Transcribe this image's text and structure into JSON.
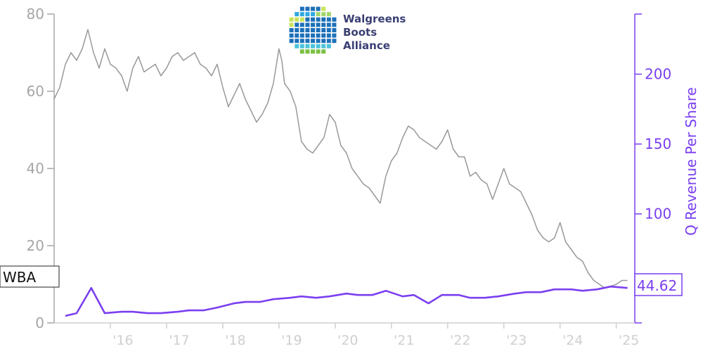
{
  "colors": {
    "price": "#999999",
    "revenue": "#7a3ff0",
    "axis_left": "#a6a6a6",
    "axis_x": "#cfcfcf",
    "logo_blue": "#3a3f73",
    "logo_tiles": [
      "#7ac143",
      "#2fa8df",
      "#c9e35b",
      "#4cc3d9",
      "#1d6fb8",
      "#9fd46b"
    ]
  },
  "logo": {
    "line1": "Walgreens",
    "line2": "Boots",
    "line3": "Alliance"
  },
  "ticker_label": "WBA",
  "last_value_label": "44.62",
  "chart_data": {
    "type": "line",
    "x_tick_labels": [
      "'16",
      "'17",
      "'18",
      "'19",
      "'20",
      "'21",
      "'22",
      "'23",
      "'24",
      "'25"
    ],
    "x_tick_years": [
      2016,
      2017,
      2018,
      2019,
      2020,
      2021,
      2022,
      2023,
      2024,
      2025
    ],
    "x_range": [
      2015.0,
      2025.33
    ],
    "left_axis": {
      "ticks": [
        0,
        20,
        40,
        60,
        80
      ],
      "range": [
        0,
        80
      ]
    },
    "right_axis": {
      "label": "Q Revenue Per Share",
      "ticks": [
        100,
        150,
        200
      ],
      "range": [
        22,
        243
      ]
    },
    "grid": false,
    "series": [
      {
        "name": "WBA",
        "axis": "left",
        "points": [
          [
            2015.0,
            58
          ],
          [
            2015.1,
            61
          ],
          [
            2015.2,
            67
          ],
          [
            2015.3,
            70
          ],
          [
            2015.4,
            68
          ],
          [
            2015.5,
            71
          ],
          [
            2015.6,
            76
          ],
          [
            2015.7,
            70
          ],
          [
            2015.8,
            66
          ],
          [
            2015.9,
            71
          ],
          [
            2016.0,
            67
          ],
          [
            2016.1,
            66
          ],
          [
            2016.2,
            64
          ],
          [
            2016.3,
            60
          ],
          [
            2016.4,
            66
          ],
          [
            2016.5,
            69
          ],
          [
            2016.6,
            65
          ],
          [
            2016.7,
            66
          ],
          [
            2016.8,
            67
          ],
          [
            2016.9,
            64
          ],
          [
            2017.0,
            66
          ],
          [
            2017.1,
            69
          ],
          [
            2017.2,
            70
          ],
          [
            2017.3,
            68
          ],
          [
            2017.4,
            69
          ],
          [
            2017.5,
            70
          ],
          [
            2017.6,
            67
          ],
          [
            2017.7,
            66
          ],
          [
            2017.8,
            64
          ],
          [
            2017.9,
            67
          ],
          [
            2018.0,
            61
          ],
          [
            2018.1,
            56
          ],
          [
            2018.2,
            59
          ],
          [
            2018.3,
            62
          ],
          [
            2018.4,
            58
          ],
          [
            2018.5,
            55
          ],
          [
            2018.6,
            52
          ],
          [
            2018.7,
            54
          ],
          [
            2018.8,
            57
          ],
          [
            2018.9,
            62
          ],
          [
            2019.0,
            71
          ],
          [
            2019.05,
            68
          ],
          [
            2019.1,
            62
          ],
          [
            2019.2,
            60
          ],
          [
            2019.3,
            56
          ],
          [
            2019.4,
            47
          ],
          [
            2019.5,
            45
          ],
          [
            2019.6,
            44
          ],
          [
            2019.7,
            46
          ],
          [
            2019.8,
            48
          ],
          [
            2019.9,
            54
          ],
          [
            2020.0,
            52
          ],
          [
            2020.1,
            46
          ],
          [
            2020.2,
            44
          ],
          [
            2020.3,
            40
          ],
          [
            2020.4,
            38
          ],
          [
            2020.5,
            36
          ],
          [
            2020.6,
            35
          ],
          [
            2020.7,
            33
          ],
          [
            2020.8,
            31
          ],
          [
            2020.9,
            38
          ],
          [
            2021.0,
            42
          ],
          [
            2021.1,
            44
          ],
          [
            2021.2,
            48
          ],
          [
            2021.3,
            51
          ],
          [
            2021.4,
            50
          ],
          [
            2021.5,
            48
          ],
          [
            2021.6,
            47
          ],
          [
            2021.7,
            46
          ],
          [
            2021.8,
            45
          ],
          [
            2021.9,
            47
          ],
          [
            2022.0,
            50
          ],
          [
            2022.1,
            45
          ],
          [
            2022.2,
            43
          ],
          [
            2022.3,
            43
          ],
          [
            2022.4,
            38
          ],
          [
            2022.5,
            39
          ],
          [
            2022.6,
            37
          ],
          [
            2022.7,
            36
          ],
          [
            2022.8,
            32
          ],
          [
            2022.9,
            36
          ],
          [
            2023.0,
            40
          ],
          [
            2023.1,
            36
          ],
          [
            2023.2,
            35
          ],
          [
            2023.3,
            34
          ],
          [
            2023.4,
            31
          ],
          [
            2023.5,
            28
          ],
          [
            2023.6,
            24
          ],
          [
            2023.7,
            22
          ],
          [
            2023.8,
            21
          ],
          [
            2023.9,
            22
          ],
          [
            2024.0,
            26
          ],
          [
            2024.1,
            21
          ],
          [
            2024.2,
            19
          ],
          [
            2024.3,
            17
          ],
          [
            2024.4,
            16
          ],
          [
            2024.5,
            13
          ],
          [
            2024.6,
            11
          ],
          [
            2024.7,
            10
          ],
          [
            2024.8,
            9
          ],
          [
            2024.9,
            9.5
          ],
          [
            2025.0,
            10
          ],
          [
            2025.1,
            11
          ],
          [
            2025.2,
            11
          ]
        ]
      },
      {
        "name": "Q Revenue Per Share",
        "axis": "right",
        "points": [
          [
            2015.2,
            27
          ],
          [
            2015.4,
            29
          ],
          [
            2015.66,
            47
          ],
          [
            2015.9,
            29
          ],
          [
            2016.2,
            30
          ],
          [
            2016.4,
            30
          ],
          [
            2016.66,
            29
          ],
          [
            2016.9,
            29
          ],
          [
            2017.2,
            30
          ],
          [
            2017.4,
            31
          ],
          [
            2017.66,
            31
          ],
          [
            2017.9,
            33
          ],
          [
            2018.2,
            36
          ],
          [
            2018.4,
            37
          ],
          [
            2018.66,
            37
          ],
          [
            2018.9,
            39
          ],
          [
            2019.2,
            40
          ],
          [
            2019.4,
            41
          ],
          [
            2019.66,
            40
          ],
          [
            2019.9,
            41
          ],
          [
            2020.2,
            43
          ],
          [
            2020.4,
            42
          ],
          [
            2020.66,
            42
          ],
          [
            2020.9,
            45
          ],
          [
            2021.2,
            41
          ],
          [
            2021.4,
            42
          ],
          [
            2021.66,
            36
          ],
          [
            2021.9,
            42
          ],
          [
            2022.2,
            42
          ],
          [
            2022.4,
            40
          ],
          [
            2022.66,
            40
          ],
          [
            2022.9,
            41
          ],
          [
            2023.2,
            43
          ],
          [
            2023.4,
            44
          ],
          [
            2023.66,
            44
          ],
          [
            2023.9,
            46
          ],
          [
            2024.2,
            46
          ],
          [
            2024.4,
            45
          ],
          [
            2024.66,
            46
          ],
          [
            2024.9,
            48
          ],
          [
            2025.2,
            47
          ]
        ]
      }
    ]
  }
}
